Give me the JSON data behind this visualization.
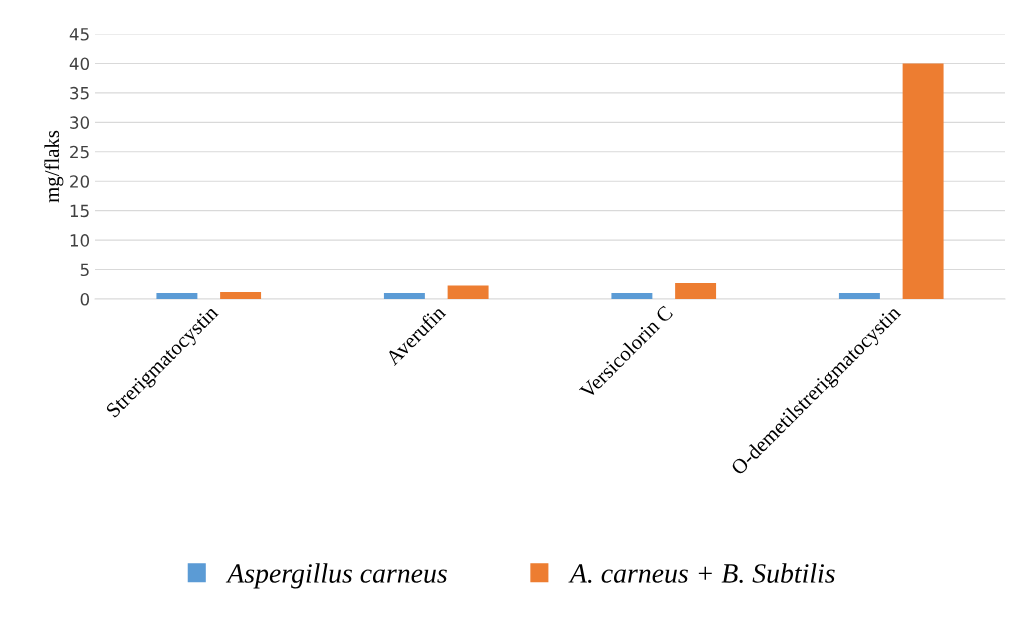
{
  "chart_data": {
    "type": "bar",
    "ylabel": "mg/flaks",
    "categories": [
      "Strerigmatocystin",
      "Averufin",
      "Versicolorin C",
      "O-demetilstrerigmatocystin"
    ],
    "series": [
      {
        "name": "Aspergillus carneus",
        "color": "#5b9bd5",
        "values": [
          1,
          1,
          1,
          1
        ]
      },
      {
        "name": "A. carneus + B. Subtilis",
        "color": "#ed7d31",
        "values": [
          1.2,
          2.3,
          2.7,
          40
        ]
      }
    ],
    "ylim": [
      0,
      45
    ],
    "yticks": [
      0,
      5,
      10,
      15,
      20,
      25,
      30,
      35,
      40,
      45
    ],
    "grid": "y",
    "legend": "bottom"
  }
}
